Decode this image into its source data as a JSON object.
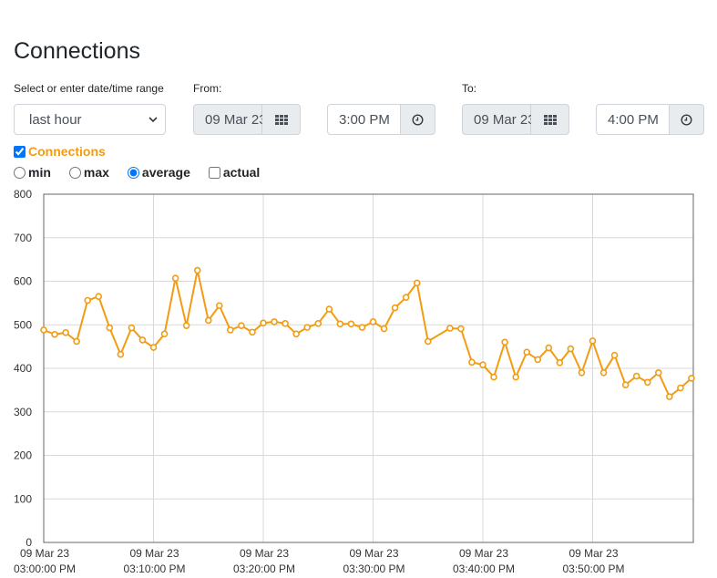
{
  "page": {
    "title": "Connections"
  },
  "range": {
    "label": "Select or enter date/time range",
    "selected": "last hour"
  },
  "from": {
    "label": "From:",
    "date": "09 Mar 23",
    "time": "3:00 PM"
  },
  "to": {
    "label": "To:",
    "date": "09 Mar 23",
    "time": "4:00 PM"
  },
  "icons": {
    "calendar": "calendar-grid-icon",
    "clock": "clock-icon"
  },
  "series_toggle": {
    "label": "Connections",
    "checked": true,
    "color": "#f39c12"
  },
  "modes": [
    {
      "label": "min",
      "type": "radio",
      "checked": false
    },
    {
      "label": "max",
      "type": "radio",
      "checked": false
    },
    {
      "label": "average",
      "type": "radio",
      "checked": true
    },
    {
      "label": "actual",
      "type": "checkbox",
      "checked": false
    }
  ],
  "chart_data": {
    "type": "line",
    "title": "",
    "xlabel": "",
    "ylabel": "",
    "ylim": [
      0,
      800
    ],
    "yticks": [
      0,
      100,
      200,
      300,
      400,
      500,
      600,
      700,
      800
    ],
    "xlim": [
      "09 Mar 23 03:00:00 PM",
      "09 Mar 23 03:59:00 PM"
    ],
    "xticks": [
      {
        "date": "09 Mar 23",
        "time": "03:00:00 PM"
      },
      {
        "date": "09 Mar 23",
        "time": "03:10:00 PM"
      },
      {
        "date": "09 Mar 23",
        "time": "03:20:00 PM"
      },
      {
        "date": "09 Mar 23",
        "time": "03:30:00 PM"
      },
      {
        "date": "09 Mar 23",
        "time": "03:40:00 PM"
      },
      {
        "date": "09 Mar 23",
        "time": "03:50:00 PM"
      }
    ],
    "grid": true,
    "color": "#f39c12",
    "series": [
      {
        "x": [
          "15:00",
          "15:01",
          "15:02",
          "15:03",
          "15:04",
          "15:05",
          "15:06",
          "15:07",
          "15:08",
          "15:09",
          "15:10",
          "15:11",
          "15:12",
          "15:13",
          "15:14",
          "15:15",
          "15:16",
          "15:17",
          "15:18",
          "15:19",
          "15:20",
          "15:21",
          "15:22",
          "15:23",
          "15:24",
          "15:25",
          "15:26",
          "15:27",
          "15:28",
          "15:29",
          "15:30",
          "15:31",
          "15:32",
          "15:33",
          "15:34",
          "15:35",
          "15:37",
          "15:38",
          "15:39",
          "15:40",
          "15:41",
          "15:42",
          "15:43",
          "15:44",
          "15:45",
          "15:46",
          "15:47",
          "15:48",
          "15:49",
          "15:50",
          "15:51",
          "15:52",
          "15:53",
          "15:54",
          "15:55",
          "15:56",
          "15:57",
          "15:58",
          "15:59"
        ],
        "values": [
          488,
          478,
          482,
          462,
          556,
          565,
          493,
          432,
          493,
          465,
          448,
          479,
          607,
          498,
          625,
          510,
          544,
          488,
          498,
          483,
          504,
          507,
          503,
          479,
          494,
          503,
          536,
          502,
          502,
          494,
          507,
          491,
          539,
          563,
          596,
          462,
          492,
          491,
          414,
          408,
          380,
          460,
          380,
          437,
          420,
          447,
          413,
          445,
          390,
          463,
          390,
          430,
          362,
          382,
          368,
          390,
          335,
          355,
          377
        ]
      }
    ]
  }
}
